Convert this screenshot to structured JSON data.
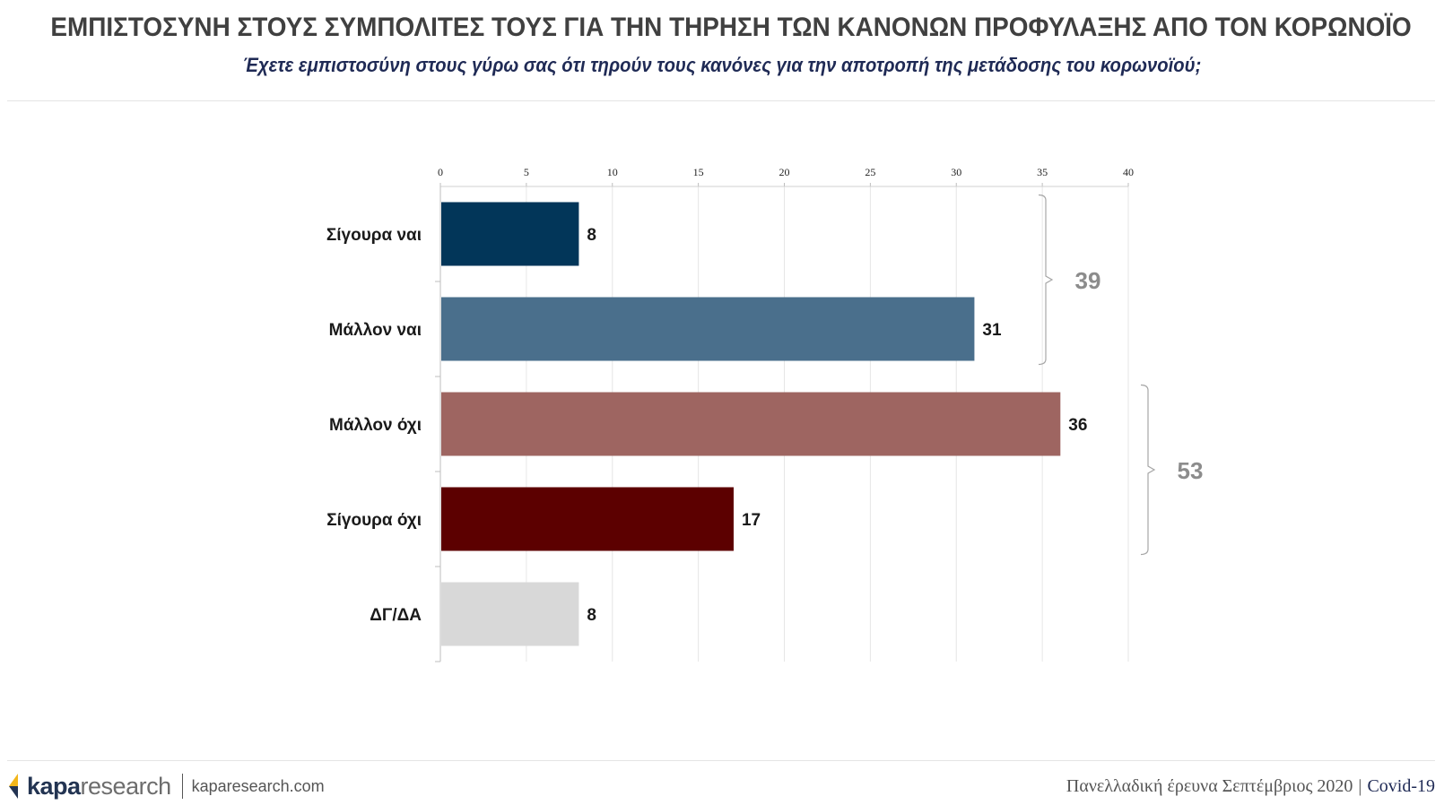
{
  "header": {
    "title": "ΕΜΠΙΣΤΟΣΥΝΗ ΣΤΟΥΣ ΣΥΜΠΟΛΙΤΕΣ ΤΟΥΣ ΓΙΑ ΤΗΝ ΤΗΡΗΣΗ ΤΩΝ ΚΑΝΟΝΩΝ ΠΡΟΦΥΛΑΞΗΣ ΑΠΟ ΤΟΝ ΚΟΡΩΝΟΪΟ",
    "subtitle": "Έχετε εμπιστοσύνη στους γύρω σας ότι τηρούν τους κανόνες για την αποτροπή της μετάδοσης του κορωνοϊού;"
  },
  "chart_data": {
    "type": "bar",
    "orientation": "horizontal",
    "categories": [
      "Σίγουρα ναι",
      "Μάλλον ναι",
      "Μάλλον όχι",
      "Σίγουρα όχι",
      "ΔΓ/ΔΑ"
    ],
    "values": [
      8,
      31,
      36,
      17,
      8
    ],
    "colors": [
      "#023659",
      "#4a6f8c",
      "#9e6561",
      "#5c0000",
      "#d8d8d8"
    ],
    "xlim": [
      0,
      40
    ],
    "ticks": [
      0,
      5,
      10,
      15,
      20,
      25,
      30,
      35,
      40
    ],
    "grid": true,
    "groups": [
      {
        "label": "39",
        "from": 0,
        "to": 1
      },
      {
        "label": "53",
        "from": 2,
        "to": 3
      }
    ]
  },
  "footer": {
    "brand_bold": "kapa",
    "brand_light": "research",
    "website": "kaparesearch.com",
    "survey": "Πανελλαδική έρευνα Σεπτέμβριος 2020",
    "separator": "|",
    "tag": "Covid-19"
  }
}
